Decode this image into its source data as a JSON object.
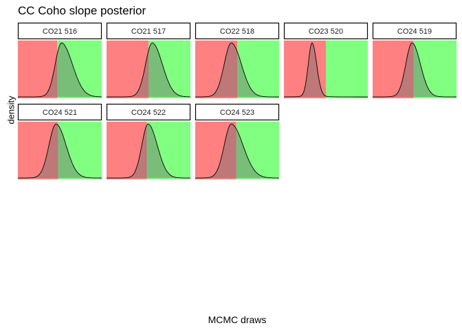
{
  "chart_data": {
    "type": "area",
    "title": "CC Coho slope posterior",
    "xlabel": "MCMC draws",
    "ylabel": "density",
    "region_colors": {
      "below_zero": "#ff8080",
      "above_zero": "#80ff80",
      "curve": "#000000"
    },
    "facet_layout": {
      "columns": 5
    },
    "facets": [
      {
        "label": "CO21 516",
        "zero_fraction": 0.47,
        "peak_fraction": 0.52,
        "spread_left": 0.075,
        "spread_right": 0.13
      },
      {
        "label": "CO21 517",
        "zero_fraction": 0.5,
        "peak_fraction": 0.545,
        "spread_left": 0.08,
        "spread_right": 0.12
      },
      {
        "label": "CO22 518",
        "zero_fraction": 0.5,
        "peak_fraction": 0.43,
        "spread_left": 0.085,
        "spread_right": 0.12
      },
      {
        "label": "CO23 520",
        "zero_fraction": 0.5,
        "peak_fraction": 0.335,
        "spread_left": 0.045,
        "spread_right": 0.055
      },
      {
        "label": "CO24 519",
        "zero_fraction": 0.49,
        "peak_fraction": 0.47,
        "spread_left": 0.075,
        "spread_right": 0.1
      },
      {
        "label": "CO24 521",
        "zero_fraction": 0.48,
        "peak_fraction": 0.455,
        "spread_left": 0.085,
        "spread_right": 0.12
      },
      {
        "label": "CO24 522",
        "zero_fraction": 0.48,
        "peak_fraction": 0.495,
        "spread_left": 0.075,
        "spread_right": 0.11
      },
      {
        "label": "CO24 523",
        "zero_fraction": 0.49,
        "peak_fraction": 0.43,
        "spread_left": 0.085,
        "spread_right": 0.14
      }
    ]
  }
}
